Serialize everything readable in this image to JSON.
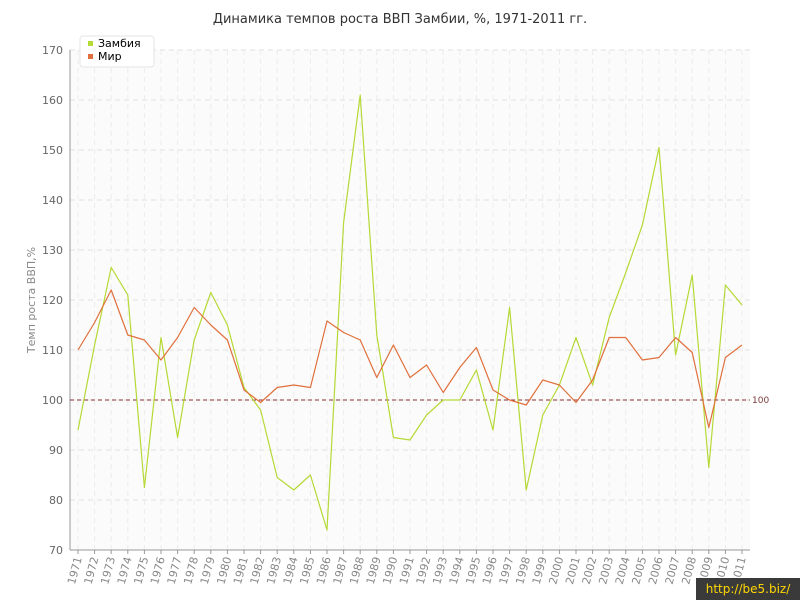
{
  "chart_data": {
    "type": "line",
    "title": "Динамика темпов роста ВВП Замбии, %, 1971-2011 гг.",
    "xlabel": "",
    "ylabel": "Темп роста ВВП,%",
    "ylim": [
      70,
      170
    ],
    "yticks": [
      70,
      80,
      90,
      100,
      110,
      120,
      130,
      140,
      150,
      160,
      170
    ],
    "x": [
      "1971",
      "1972",
      "1973",
      "1974",
      "1975",
      "1976",
      "1977",
      "1978",
      "1979",
      "1980",
      "1981",
      "1982",
      "1983",
      "1984",
      "1985",
      "1986",
      "1987",
      "1988",
      "1989",
      "1990",
      "1991",
      "1992",
      "1993",
      "1994",
      "1995",
      "1996",
      "1997",
      "1998",
      "1999",
      "2000",
      "2001",
      "2002",
      "2003",
      "2004",
      "2005",
      "2006",
      "2007",
      "2008",
      "2009",
      "2010",
      "2011"
    ],
    "series": [
      {
        "name": "Замбия",
        "color": "#b5d935",
        "values": [
          94,
          111,
          126.5,
          121,
          82.5,
          112.5,
          92.5,
          112,
          121.5,
          115,
          102.5,
          98,
          84.5,
          82,
          85,
          74,
          135.5,
          161,
          113,
          92.5,
          92,
          97,
          100,
          100,
          106,
          94,
          118.5,
          82,
          97,
          103,
          112.5,
          103,
          116.5,
          125.5,
          135,
          150.5,
          109,
          125,
          86.5,
          123,
          119
        ]
      },
      {
        "name": "Мир",
        "color": "#e0703c",
        "values": [
          110,
          115.5,
          122,
          113,
          112,
          108,
          112.5,
          118.5,
          115,
          112,
          102,
          99.5,
          102.5,
          103,
          102.5,
          115.8,
          113.5,
          112,
          104.5,
          111,
          104.5,
          107,
          101.5,
          106.5,
          110.5,
          102,
          100,
          99,
          104,
          103,
          99.5,
          104,
          112.5,
          112.5,
          108,
          108.5,
          112.5,
          109.5,
          94.5,
          108.5,
          111
        ]
      }
    ],
    "reference_line": {
      "value": 100,
      "label": "100",
      "color": "#8b2d2d"
    },
    "grid": true,
    "legend_position": "top-left"
  },
  "watermark": "http://be5.biz/"
}
